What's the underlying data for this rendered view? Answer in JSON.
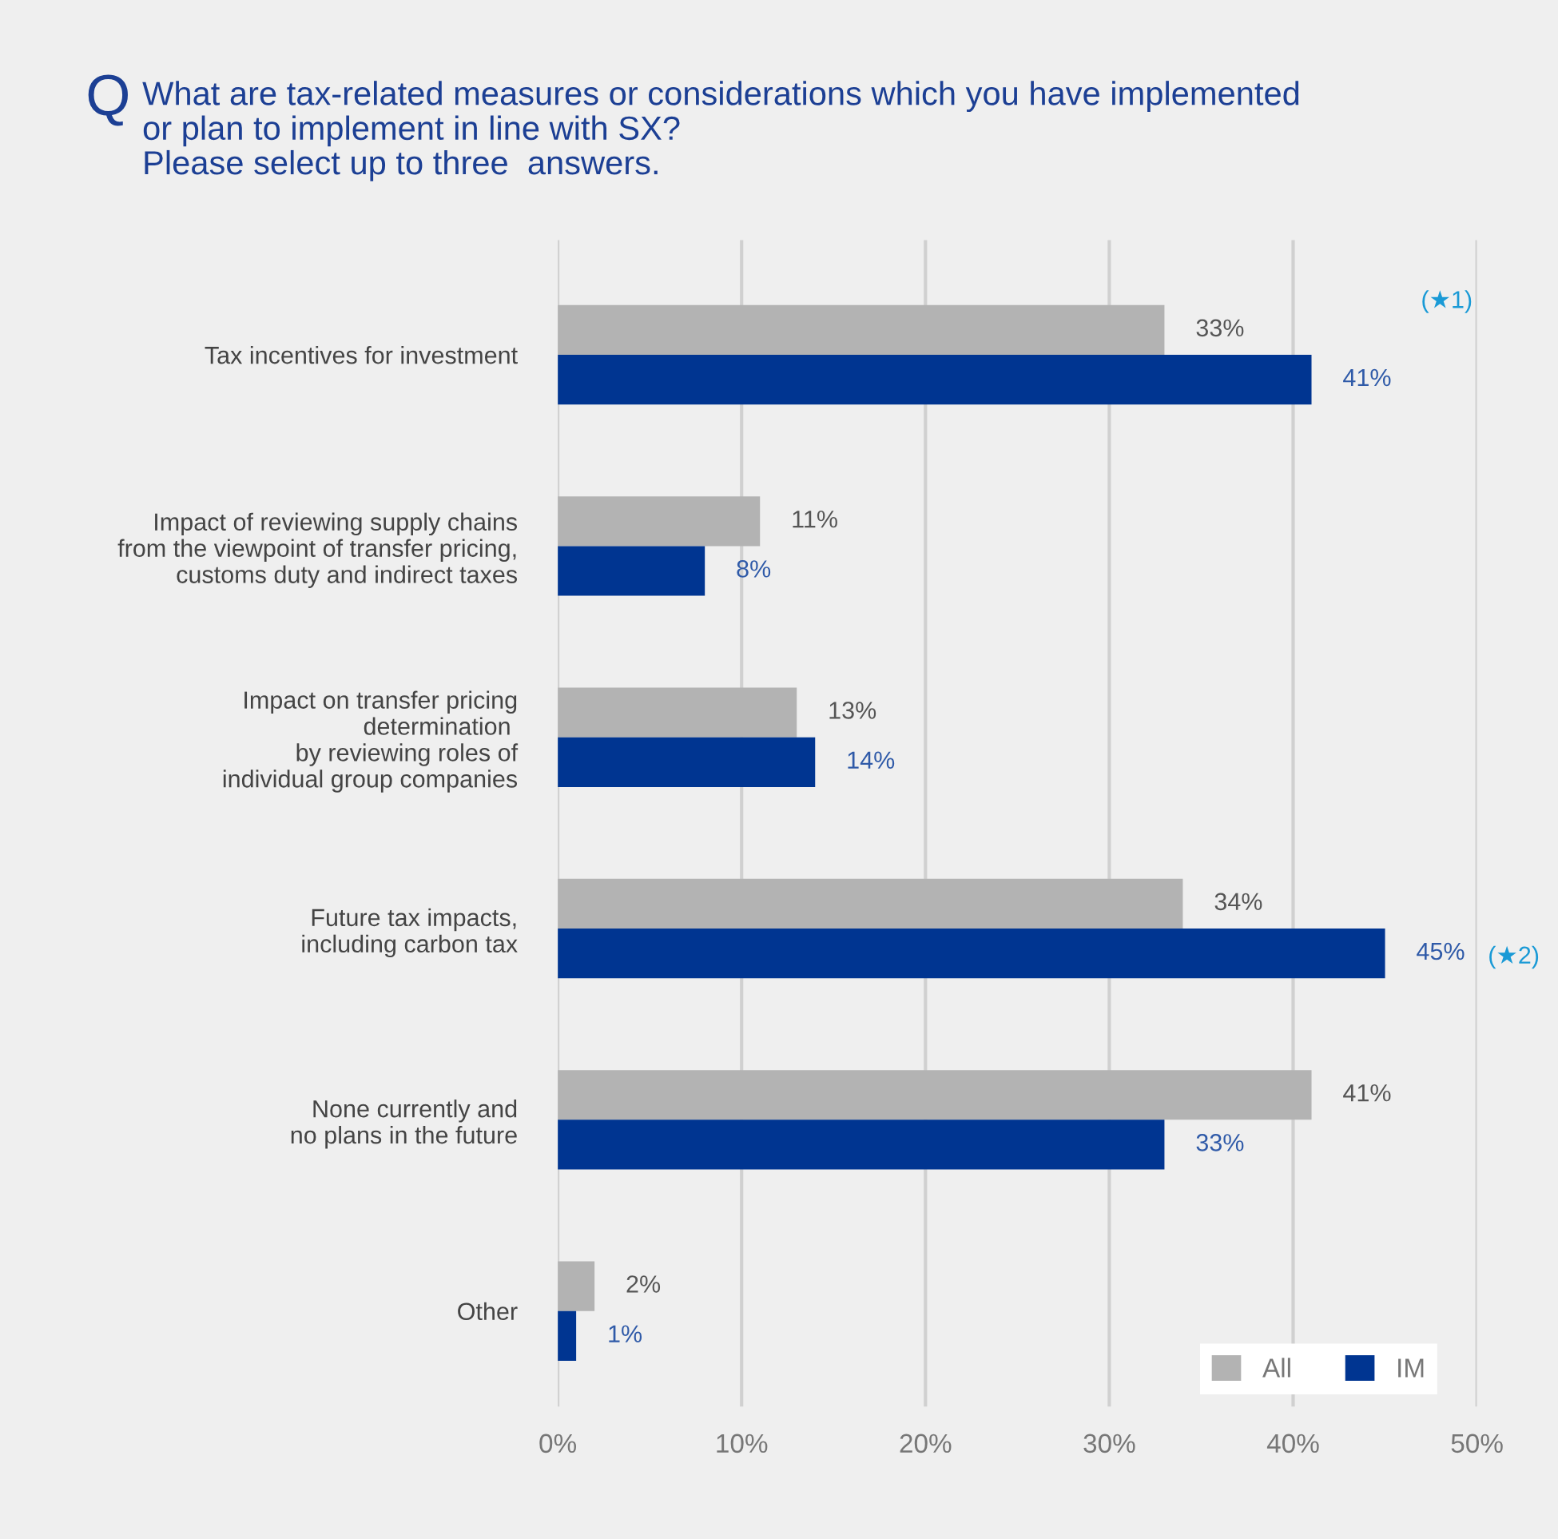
{
  "chart_data": {
    "type": "bar",
    "orientation": "horizontal",
    "title": "What are tax-related measures or considerations which you have implemented\nor plan to implement in line with SX?\nPlease select up to three  answers.",
    "categories": [
      "Tax incentives for investment",
      "Impact of reviewing supply chains\nfrom the viewpoint of transfer pricing,\ncustoms duty and indirect taxes",
      "Impact on transfer pricing\ndetermination \nby reviewing roles of\nindividual group companies",
      "Future tax impacts,\nincluding carbon tax",
      "None currently and\nno plans in the future",
      "Other"
    ],
    "series": [
      {
        "name": "All",
        "color": "#b3b3b3",
        "values": [
          33,
          11,
          13,
          34,
          41,
          2
        ],
        "value_labels": [
          "33%",
          "11%",
          "13%",
          "34%",
          "41%",
          "2%"
        ]
      },
      {
        "name": "IM",
        "color": "#003591",
        "values": [
          41,
          8,
          14,
          45,
          33,
          1
        ],
        "value_labels": [
          "41%",
          "8%",
          "14%",
          "45%",
          "33%",
          "1%"
        ]
      }
    ],
    "xlim": [
      0,
      50
    ],
    "xticks": [
      {
        "value": 0,
        "label": "0%"
      },
      {
        "value": 10,
        "label": "10%"
      },
      {
        "value": 20,
        "label": "20%"
      },
      {
        "value": 30,
        "label": "30%"
      },
      {
        "value": 40,
        "label": "40%"
      },
      {
        "value": 50,
        "label": "50%"
      }
    ],
    "grid": "x",
    "legend": "bottom right",
    "annotations": [
      "Q",
      "(★1)",
      "(★2)"
    ]
  }
}
